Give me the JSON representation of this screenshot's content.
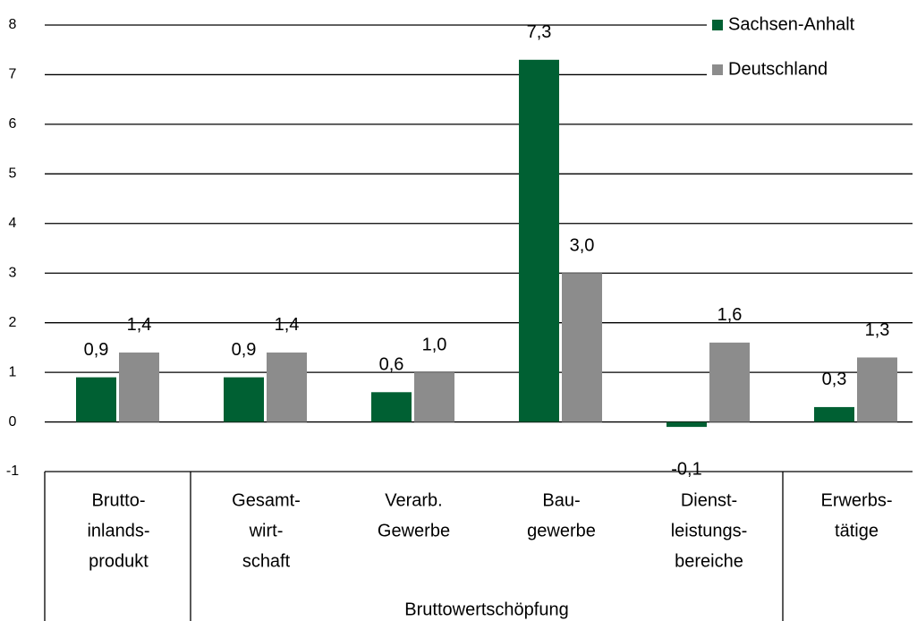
{
  "chart_data": {
    "type": "bar",
    "categories": [
      [
        "Brutto-",
        "inlands-",
        "produkt"
      ],
      [
        "Gesamt-",
        "wirt-",
        "schaft"
      ],
      [
        "Verarb.",
        "Gewerbe"
      ],
      [
        "Bau-",
        "gewerbe"
      ],
      [
        "Dienst-",
        "leistungs-",
        "bereiche"
      ],
      [
        "Erwerbs-",
        "tätige"
      ]
    ],
    "group_label": "Bruttowertschöpfung",
    "series": [
      {
        "name": "Sachsen-Anhalt",
        "color": "#006033",
        "values": [
          0.9,
          0.9,
          0.6,
          7.3,
          -0.1,
          0.3
        ],
        "value_labels": [
          "0,9",
          "0,9",
          "0,6",
          "7,3",
          "-0,1",
          "0,3"
        ]
      },
      {
        "name": "Deutschland",
        "color": "#8c8c8c",
        "values": [
          1.4,
          1.4,
          1.0,
          3.0,
          1.6,
          1.3
        ],
        "value_labels": [
          "1,4",
          "1,4",
          "1,0",
          "3,0",
          "1,6",
          "1,3"
        ]
      }
    ],
    "ylim": [
      -1,
      8
    ],
    "yticks": [
      -1,
      0,
      1,
      2,
      3,
      4,
      5,
      6,
      7,
      8
    ],
    "grid": true,
    "legend": "top-right"
  }
}
